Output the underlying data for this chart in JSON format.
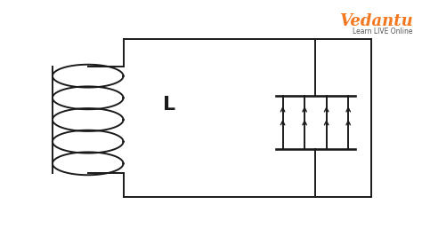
{
  "bg_color": "#ffffff",
  "line_color": "#1a1a1a",
  "label_L": "L",
  "figsize": [
    4.74,
    2.66
  ],
  "dpi": 100,
  "vedantu_text": "Vedantu",
  "vedantu_sub": "Learn LIVE Online",
  "vedantu_color": "#F47820",
  "vedantu_sub_color": "#555555",
  "n_coils": 5,
  "n_cap_lines": 4
}
